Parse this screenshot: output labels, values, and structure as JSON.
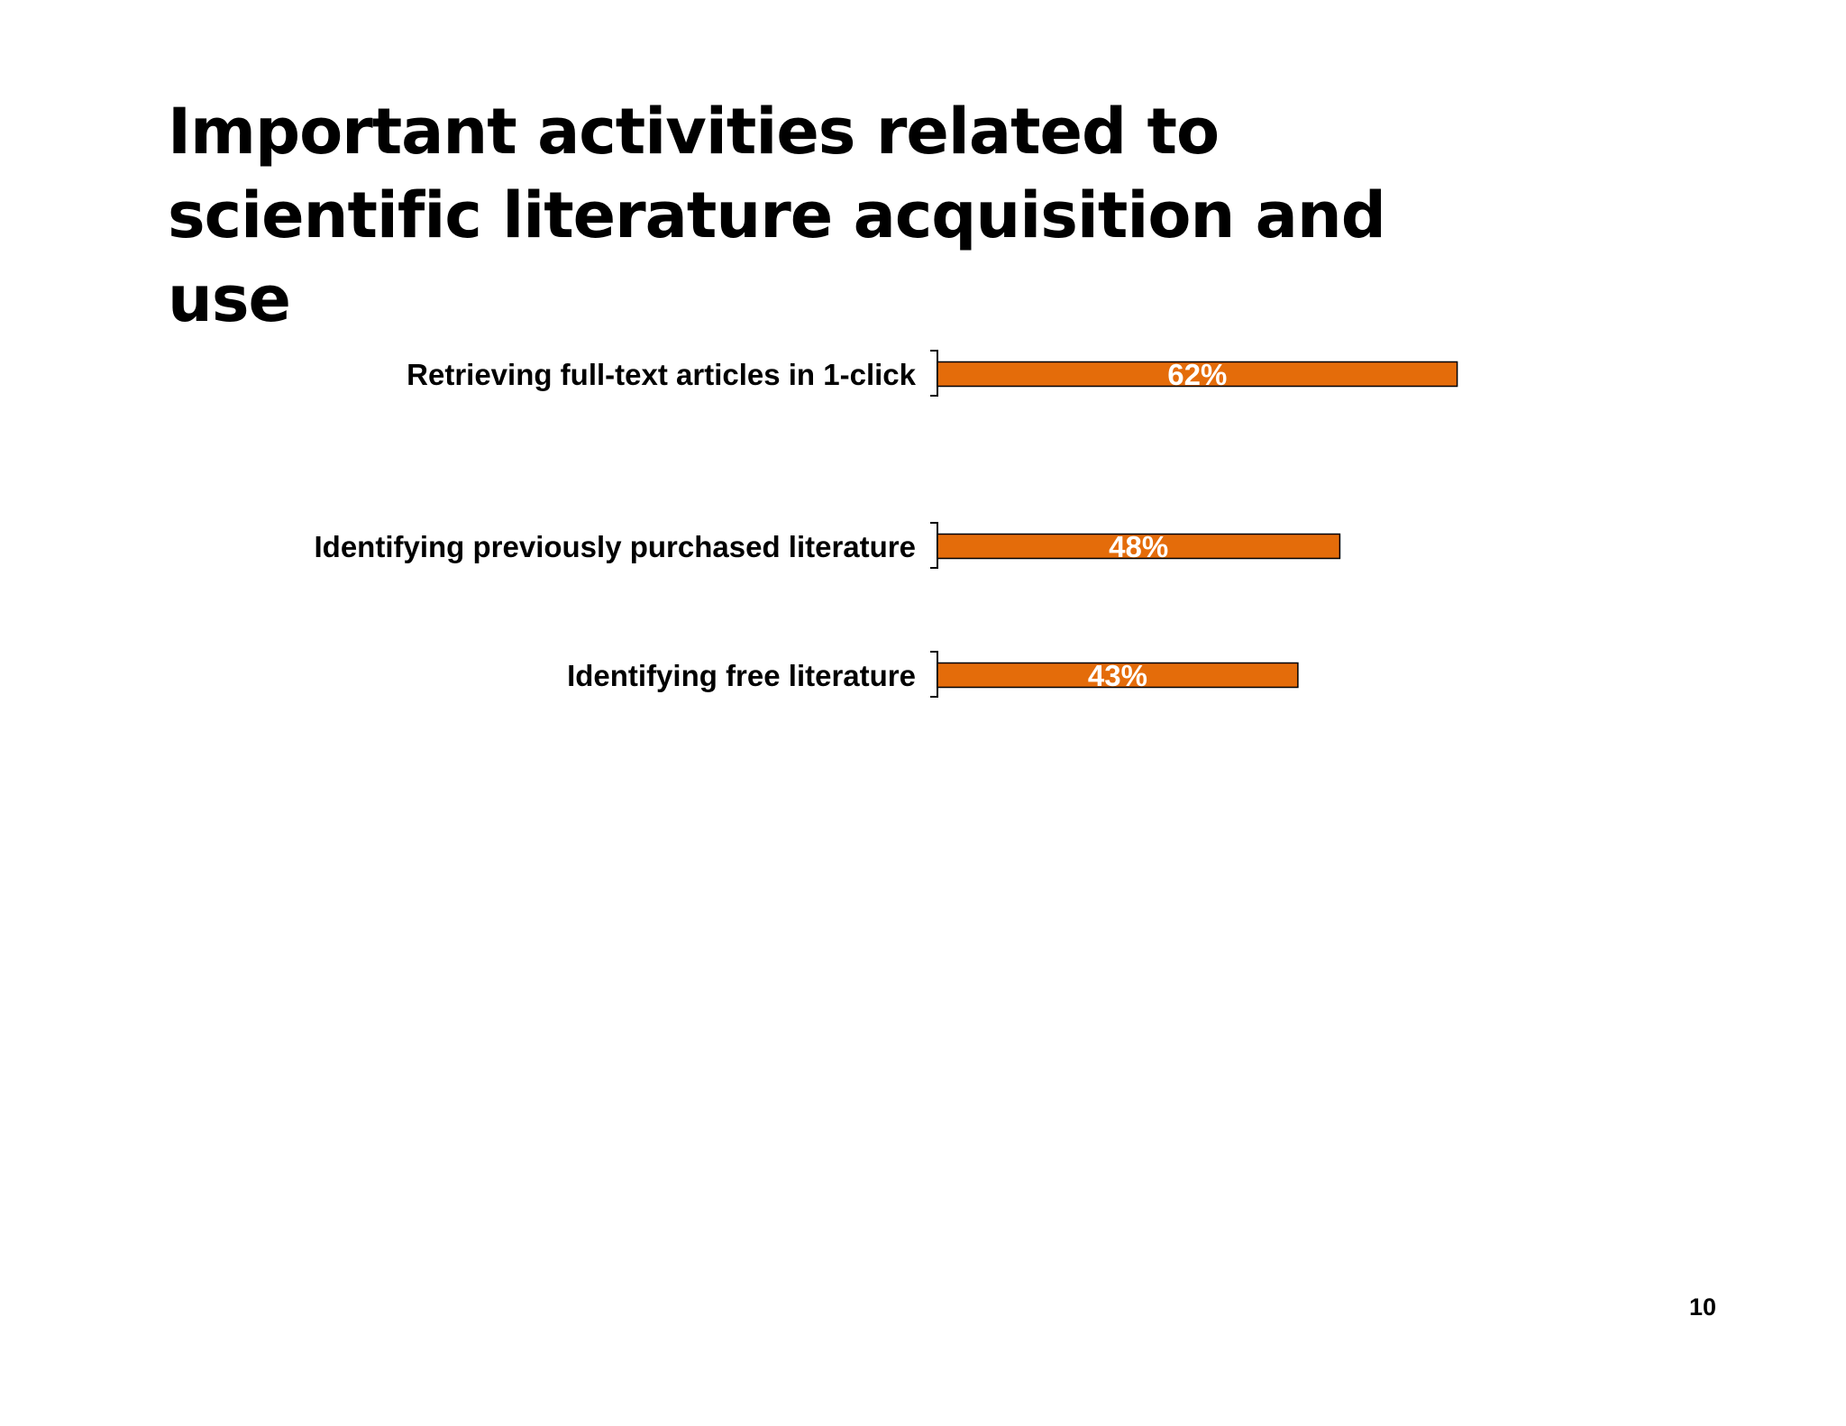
{
  "slide": {
    "title": "Important activities related to scientific literature acquisition and use",
    "page_number": "10"
  },
  "chart_data": {
    "type": "bar",
    "orientation": "horizontal",
    "title": "",
    "xlabel": "",
    "ylabel": "",
    "categories": [
      "Retrieving full-text articles in 1-click",
      "Identifying previously purchased literature",
      "Identifying free literature"
    ],
    "values": [
      62,
      48,
      43
    ],
    "value_labels": [
      "62%",
      "48%",
      "43%"
    ],
    "unit": "%",
    "xlim": [
      0,
      100
    ],
    "grid": false,
    "legend": "none",
    "bar_color": "#e46c0a",
    "bar_edge_color": "#000000",
    "value_label_color": "#ffffff"
  }
}
